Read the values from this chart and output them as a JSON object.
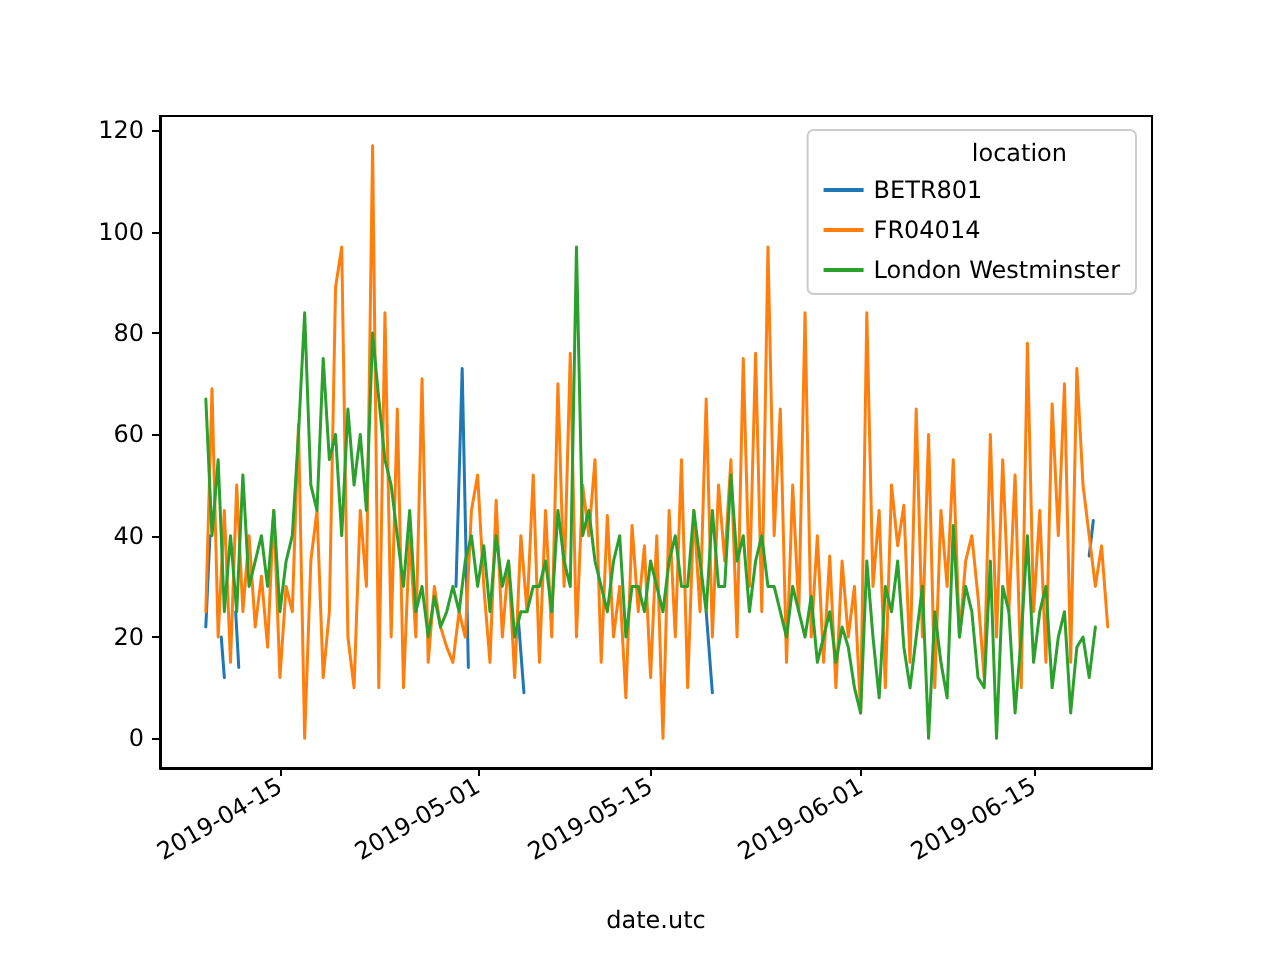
{
  "chart_data": {
    "type": "line",
    "xlabel": "date.utc",
    "legend_title": "location",
    "legend": "top right",
    "grid": false,
    "marker": "none",
    "line_style": "solid",
    "x": [
      "2019-04-09T00:00",
      "2019-04-09T12:00",
      "2019-04-10T00:00",
      "2019-04-10T12:00",
      "2019-04-11T00:00",
      "2019-04-11T12:00",
      "2019-04-12T00:00",
      "2019-04-12T12:00",
      "2019-04-13T00:00",
      "2019-04-13T12:00",
      "2019-04-14T00:00",
      "2019-04-14T12:00",
      "2019-04-15T00:00",
      "2019-04-15T12:00",
      "2019-04-16T00:00",
      "2019-04-16T12:00",
      "2019-04-17T00:00",
      "2019-04-17T12:00",
      "2019-04-18T00:00",
      "2019-04-18T12:00",
      "2019-04-19T00:00",
      "2019-04-19T12:00",
      "2019-04-20T00:00",
      "2019-04-20T12:00",
      "2019-04-21T00:00",
      "2019-04-21T12:00",
      "2019-04-22T00:00",
      "2019-04-22T12:00",
      "2019-04-23T00:00",
      "2019-04-23T12:00",
      "2019-04-24T00:00",
      "2019-04-24T12:00",
      "2019-04-25T00:00",
      "2019-04-25T12:00",
      "2019-04-26T00:00",
      "2019-04-26T12:00",
      "2019-04-27T00:00",
      "2019-04-27T12:00",
      "2019-04-28T00:00",
      "2019-04-28T12:00",
      "2019-04-29T00:00",
      "2019-04-29T12:00",
      "2019-04-30T00:00",
      "2019-04-30T12:00",
      "2019-05-01T00:00",
      "2019-05-01T12:00",
      "2019-05-02T00:00",
      "2019-05-02T12:00",
      "2019-05-03T00:00",
      "2019-05-03T12:00",
      "2019-05-04T00:00",
      "2019-05-04T12:00",
      "2019-05-05T00:00",
      "2019-05-05T12:00",
      "2019-05-06T00:00",
      "2019-05-06T12:00",
      "2019-05-07T00:00",
      "2019-05-07T12:00",
      "2019-05-08T00:00",
      "2019-05-08T12:00",
      "2019-05-09T00:00",
      "2019-05-09T12:00",
      "2019-05-10T00:00",
      "2019-05-10T12:00",
      "2019-05-11T00:00",
      "2019-05-11T12:00",
      "2019-05-12T00:00",
      "2019-05-12T12:00",
      "2019-05-13T00:00",
      "2019-05-13T12:00",
      "2019-05-14T00:00",
      "2019-05-14T12:00",
      "2019-05-15T00:00",
      "2019-05-15T12:00",
      "2019-05-16T00:00",
      "2019-05-16T12:00",
      "2019-05-17T00:00",
      "2019-05-17T12:00",
      "2019-05-18T00:00",
      "2019-05-18T12:00",
      "2019-05-19T00:00",
      "2019-05-19T12:00",
      "2019-05-20T00:00",
      "2019-05-20T12:00",
      "2019-05-21T00:00",
      "2019-05-21T12:00",
      "2019-05-22T00:00",
      "2019-05-22T12:00",
      "2019-05-23T00:00",
      "2019-05-23T12:00",
      "2019-05-24T00:00",
      "2019-05-24T12:00",
      "2019-05-25T00:00",
      "2019-05-25T12:00",
      "2019-05-26T00:00",
      "2019-05-26T12:00",
      "2019-05-27T00:00",
      "2019-05-27T12:00",
      "2019-05-28T00:00",
      "2019-05-28T12:00",
      "2019-05-29T00:00",
      "2019-05-29T12:00",
      "2019-05-30T00:00",
      "2019-05-30T12:00",
      "2019-05-31T00:00",
      "2019-05-31T12:00",
      "2019-06-01T00:00",
      "2019-06-01T12:00",
      "2019-06-02T00:00",
      "2019-06-02T12:00",
      "2019-06-03T00:00",
      "2019-06-03T12:00",
      "2019-06-04T00:00",
      "2019-06-04T12:00",
      "2019-06-05T00:00",
      "2019-06-05T12:00",
      "2019-06-06T00:00",
      "2019-06-06T12:00",
      "2019-06-07T00:00",
      "2019-06-07T12:00",
      "2019-06-08T00:00",
      "2019-06-08T12:00",
      "2019-06-09T00:00",
      "2019-06-09T12:00",
      "2019-06-10T00:00",
      "2019-06-10T12:00",
      "2019-06-11T00:00",
      "2019-06-11T12:00",
      "2019-06-12T00:00",
      "2019-06-12T12:00",
      "2019-06-13T00:00",
      "2019-06-13T12:00",
      "2019-06-14T00:00",
      "2019-06-14T12:00",
      "2019-06-15T00:00",
      "2019-06-15T12:00",
      "2019-06-16T00:00",
      "2019-06-16T12:00",
      "2019-06-17T00:00",
      "2019-06-17T12:00",
      "2019-06-18T00:00",
      "2019-06-18T12:00",
      "2019-06-19T00:00",
      "2019-06-19T12:00",
      "2019-06-20T00:00",
      "2019-06-20T12:00",
      "2019-06-21T00:00"
    ],
    "series": [
      {
        "name": "BETR801",
        "color": "#1f77b4",
        "x": [
          "2019-04-09T00:00",
          "2019-04-09T08:00",
          "2019-04-09T12:00",
          "2019-04-10T06:00",
          "2019-04-10T12:00",
          "2019-04-11T00:00",
          "2019-04-11T10:00",
          "2019-04-11T16:00",
          "2019-04-12T00:00",
          "2019-04-29T06:00",
          "2019-04-29T18:00",
          "2019-04-30T06:00",
          "2019-04-30T12:00",
          "2019-05-04T06:00",
          "2019-05-04T18:00",
          "2019-05-05T00:00",
          "2019-05-19T12:00",
          "2019-05-20T00:00",
          "2019-05-20T12:00",
          "2019-06-19T12:00",
          "2019-06-19T20:00"
        ],
        "values": [
          22,
          40,
          null,
          20,
          12,
          null,
          25,
          14,
          null,
          30,
          73,
          14,
          null,
          25,
          9,
          null,
          25,
          9,
          null,
          36,
          43
        ]
      },
      {
        "name": "FR04014",
        "color": "#ff7f0e",
        "values": [
          25,
          69,
          20,
          45,
          15,
          50,
          25,
          40,
          22,
          32,
          18,
          45,
          12,
          30,
          25,
          62,
          0,
          35,
          45,
          12,
          25,
          89,
          97,
          20,
          10,
          45,
          30,
          117,
          10,
          84,
          20,
          65,
          10,
          40,
          20,
          71,
          15,
          30,
          22,
          18,
          15,
          25,
          20,
          45,
          52,
          30,
          15,
          47,
          20,
          35,
          12,
          40,
          25,
          52,
          15,
          45,
          20,
          70,
          30,
          76,
          20,
          50,
          40,
          55,
          15,
          44,
          20,
          30,
          8,
          42,
          25,
          38,
          12,
          40,
          0,
          45,
          20,
          55,
          10,
          45,
          25,
          67,
          20,
          50,
          35,
          55,
          20,
          75,
          30,
          76,
          25,
          97,
          40,
          65,
          15,
          50,
          25,
          84,
          20,
          40,
          15,
          36,
          10,
          35,
          20,
          30,
          5,
          84,
          30,
          45,
          10,
          50,
          38,
          46,
          15,
          65,
          20,
          60,
          10,
          45,
          30,
          55,
          20,
          35,
          40,
          28,
          12,
          60,
          20,
          55,
          25,
          52,
          10,
          78,
          25,
          45,
          15,
          66,
          40,
          70,
          15,
          73,
          50,
          40,
          30,
          38,
          22
        ]
      },
      {
        "name": "London Westminster",
        "color": "#2ca02c",
        "values": [
          67,
          40,
          55,
          25,
          40,
          25,
          52,
          30,
          35,
          40,
          30,
          45,
          25,
          35,
          40,
          60,
          84,
          50,
          45,
          75,
          55,
          60,
          40,
          65,
          50,
          60,
          45,
          80,
          67,
          55,
          50,
          40,
          30,
          45,
          25,
          30,
          20,
          28,
          22,
          25,
          30,
          25,
          35,
          40,
          30,
          38,
          25,
          40,
          30,
          35,
          20,
          25,
          25,
          30,
          30,
          35,
          25,
          45,
          35,
          30,
          97,
          40,
          45,
          35,
          30,
          25,
          35,
          40,
          20,
          30,
          30,
          25,
          35,
          30,
          25,
          35,
          40,
          30,
          30,
          45,
          35,
          25,
          45,
          30,
          30,
          52,
          35,
          40,
          25,
          35,
          40,
          30,
          30,
          25,
          20,
          30,
          25,
          20,
          28,
          15,
          20,
          25,
          15,
          22,
          18,
          10,
          5,
          35,
          20,
          8,
          30,
          25,
          35,
          18,
          10,
          20,
          30,
          0,
          25,
          15,
          8,
          42,
          20,
          30,
          25,
          12,
          10,
          35,
          0,
          30,
          25,
          5,
          20,
          40,
          15,
          25,
          30,
          10,
          20,
          25,
          5,
          18,
          20,
          12,
          22,
          null,
          null
        ]
      }
    ],
    "xlim": [
      "2019-04-05T07:00",
      "2019-06-24T14:00"
    ],
    "xticks": [
      "2019-04-15",
      "2019-05-01",
      "2019-05-15",
      "2019-06-01",
      "2019-06-15"
    ],
    "ylim": [
      -5.85,
      122.85
    ],
    "yticks": [
      0,
      20,
      40,
      60,
      80,
      100,
      120
    ]
  }
}
